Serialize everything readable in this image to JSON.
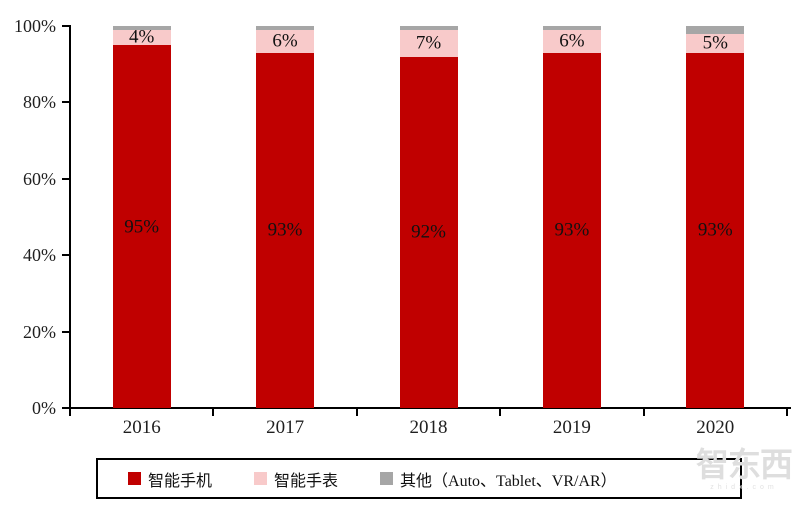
{
  "chart_data": {
    "type": "bar",
    "variant": "stacked-100-percent",
    "categories": [
      "2016",
      "2017",
      "2018",
      "2019",
      "2020"
    ],
    "series": [
      {
        "name": "智能手机",
        "color": "#C00000",
        "values": [
          95,
          93,
          92,
          93,
          93
        ],
        "show_labels": true
      },
      {
        "name": "智能手表",
        "color": "#F8CACA",
        "values": [
          4,
          6,
          7,
          6,
          5
        ],
        "show_labels": true
      },
      {
        "name": "其他（Auto、Tablet、VR/AR）",
        "color": "#A6A6A6",
        "values": [
          1,
          1,
          1,
          1,
          2
        ],
        "show_labels": false
      }
    ],
    "bar_labels": {
      "智能手机": [
        "95%",
        "93%",
        "92%",
        "93%",
        "93%"
      ],
      "智能手表": [
        "4%",
        "6%",
        "7%",
        "6%",
        "5%"
      ]
    },
    "y_ticks": [
      "0%",
      "20%",
      "40%",
      "60%",
      "80%",
      "100%"
    ],
    "ylim": [
      0,
      100
    ],
    "xlabel": "",
    "ylabel": "",
    "title": "",
    "grid": false,
    "legend_position": "bottom-box"
  },
  "legend": {
    "items": [
      {
        "label": "智能手机",
        "color": "#C00000"
      },
      {
        "label": "智能手表",
        "color": "#F8CACA"
      },
      {
        "label": "其他（Auto、Tablet、VR/AR）",
        "color": "#A6A6A6"
      }
    ]
  },
  "watermark": {
    "logo": "智东西",
    "caption": "zhidx.com"
  },
  "colors": {
    "axis": "#000000",
    "label_text": "#111111",
    "watermark": "#dedede"
  }
}
